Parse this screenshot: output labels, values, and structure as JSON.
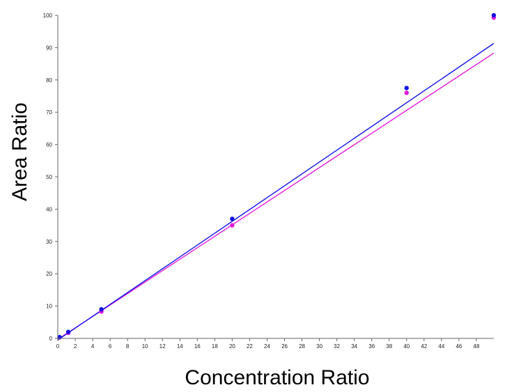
{
  "chart_data": {
    "type": "scatter",
    "xlabel": "Concentration Ratio",
    "ylabel": "Area Ratio",
    "xlim": [
      0,
      50
    ],
    "ylim": [
      0,
      100
    ],
    "x_ticks": [
      "0",
      "2",
      "4",
      "6",
      "8",
      "10",
      "12",
      "14",
      "16",
      "18",
      "20",
      "22",
      "24",
      "26",
      "28",
      "30",
      "32",
      "34",
      "36",
      "38",
      "40",
      "42",
      "44",
      "46",
      "48"
    ],
    "y_ticks": [
      "0",
      "10",
      "20",
      "30",
      "40",
      "50",
      "60",
      "70",
      "80",
      "90",
      "100"
    ],
    "grid": false,
    "legend": "none",
    "series": [
      {
        "color": "#1414e6",
        "points": [
          [
            0.2,
            0.4
          ],
          [
            1.2,
            2.0
          ],
          [
            5,
            9.0
          ],
          [
            20,
            37.0
          ],
          [
            40,
            77.5
          ],
          [
            50,
            100.0
          ]
        ],
        "fit": [
          [
            0,
            -0.5
          ],
          [
            50,
            91.3
          ]
        ]
      },
      {
        "color": "#e11ad6",
        "points": [
          [
            0.2,
            0.3
          ],
          [
            1.2,
            1.7
          ],
          [
            5,
            8.3
          ],
          [
            20,
            35.0
          ],
          [
            40,
            76.0
          ],
          [
            50,
            99.3
          ]
        ],
        "fit": [
          [
            0,
            -0.3
          ],
          [
            50,
            88.3
          ]
        ]
      }
    ]
  }
}
